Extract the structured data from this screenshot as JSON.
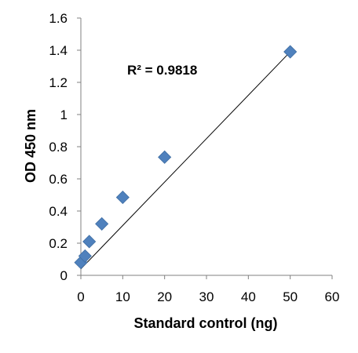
{
  "chart_data": {
    "type": "scatter",
    "title": "",
    "xlabel": "Standard control (ng)",
    "ylabel": "OD 450 nm",
    "xlim": [
      0,
      60
    ],
    "ylim": [
      0,
      1.6
    ],
    "x_ticks": [
      "0",
      "10",
      "20",
      "30",
      "40",
      "50",
      "60"
    ],
    "y_ticks": [
      "0",
      "0.2",
      "0.4",
      "0.6",
      "0.8",
      "1",
      "1.2",
      "1.4",
      "1.6"
    ],
    "grid": false,
    "legend": "none",
    "points": [
      {
        "x": 0,
        "y": 0.08
      },
      {
        "x": 1,
        "y": 0.12
      },
      {
        "x": 2,
        "y": 0.21
      },
      {
        "x": 5,
        "y": 0.32
      },
      {
        "x": 10,
        "y": 0.485
      },
      {
        "x": 20,
        "y": 0.735
      },
      {
        "x": 50,
        "y": 1.39
      }
    ],
    "trendline": {
      "type": "linear",
      "from": {
        "x": 0,
        "y": 0.04
      },
      "to": {
        "x": 50,
        "y": 1.39
      }
    },
    "annotation": "R² = 0.9818",
    "marker_color": "#4F81BD",
    "line_color": "#000000"
  }
}
